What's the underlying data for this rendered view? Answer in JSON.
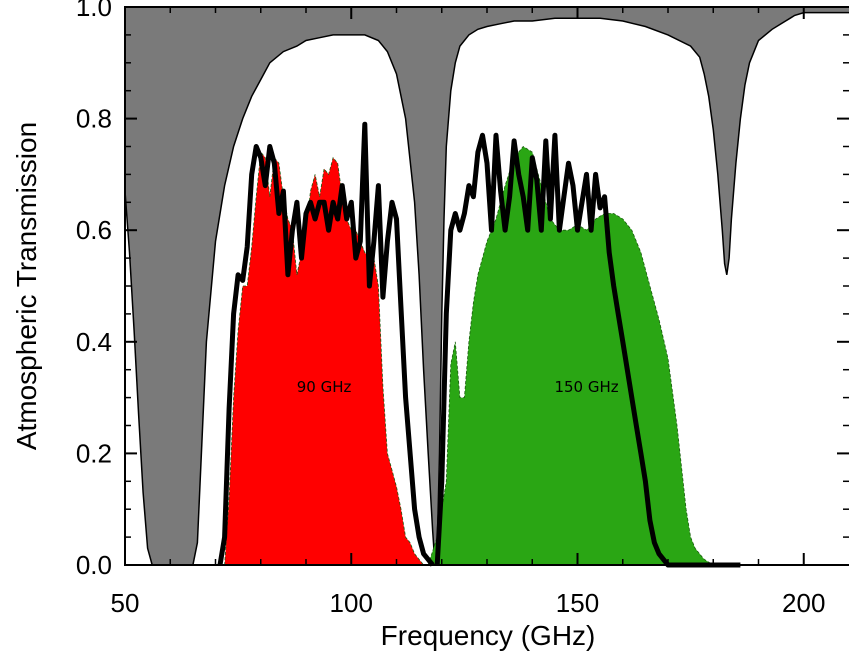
{
  "chart_data": {
    "type": "area",
    "xlabel": "Frequency (GHz)",
    "ylabel": "Atmospheric Transmission",
    "xlim": [
      50,
      210
    ],
    "ylim": [
      0,
      1.0
    ],
    "x_ticks": [
      50,
      100,
      150,
      200
    ],
    "x_tick_labels": [
      "50",
      "100",
      "150",
      "200"
    ],
    "y_ticks": [
      0,
      0.2,
      0.4,
      0.6,
      0.8,
      1.0
    ],
    "y_tick_labels": [
      "0.0",
      "0.2",
      "0.4",
      "0.6",
      "0.8",
      "1.0"
    ],
    "grid": false,
    "legend": "none",
    "annotations": [
      {
        "text": "90 GHz",
        "x": 94,
        "y": 0.31
      },
      {
        "text": "150 GHz",
        "x": 152,
        "y": 0.31
      }
    ],
    "colors": {
      "atmosphere_fill": "#7a7a7a",
      "band_90_fill": "#ff0000",
      "band_150_fill": "#2aa614",
      "outline": "#000000"
    },
    "series": [
      {
        "role": "atmospheric-transmission",
        "x": [
          50,
          51,
          52,
          53,
          54,
          55,
          56,
          57,
          58,
          60,
          62,
          64,
          65,
          66,
          67,
          68,
          70,
          72,
          74,
          76,
          78,
          80,
          82,
          85,
          88,
          90,
          93,
          96,
          100,
          103,
          106,
          108,
          110,
          112,
          114,
          115,
          116,
          117,
          118,
          118.5,
          119,
          119.5,
          120,
          120.5,
          121,
          122,
          123,
          124,
          126,
          128,
          130,
          133,
          136,
          140,
          145,
          150,
          155,
          160,
          165,
          170,
          175,
          177,
          178,
          179,
          180,
          181,
          182,
          182.5,
          183,
          183.5,
          184,
          185,
          186,
          187,
          188,
          190,
          193,
          195,
          196,
          197,
          198,
          200,
          203,
          206,
          210
        ],
        "values": [
          0.67,
          0.56,
          0.42,
          0.27,
          0.13,
          0.03,
          0.0,
          0.0,
          0.0,
          0.0,
          0.0,
          0.0,
          0.0,
          0.04,
          0.22,
          0.4,
          0.58,
          0.68,
          0.75,
          0.8,
          0.84,
          0.87,
          0.9,
          0.92,
          0.93,
          0.94,
          0.945,
          0.95,
          0.95,
          0.95,
          0.94,
          0.92,
          0.88,
          0.8,
          0.65,
          0.52,
          0.35,
          0.2,
          0.06,
          0.0,
          0.03,
          0.2,
          0.45,
          0.62,
          0.75,
          0.85,
          0.9,
          0.93,
          0.95,
          0.96,
          0.965,
          0.97,
          0.975,
          0.975,
          0.98,
          0.98,
          0.98,
          0.975,
          0.965,
          0.95,
          0.93,
          0.91,
          0.88,
          0.84,
          0.78,
          0.7,
          0.6,
          0.54,
          0.52,
          0.55,
          0.62,
          0.72,
          0.8,
          0.86,
          0.9,
          0.94,
          0.96,
          0.97,
          0.975,
          0.98,
          0.985,
          0.99,
          0.99,
          0.99,
          0.99
        ]
      },
      {
        "role": "90-ghz-band-fill",
        "x": [
          72,
          73,
          74,
          75,
          76,
          77,
          78,
          79,
          80,
          81,
          82,
          83,
          84,
          85,
          86,
          87,
          88,
          89,
          90,
          91,
          92,
          93,
          94,
          95,
          96,
          97,
          98,
          99,
          100,
          101,
          102,
          103,
          104,
          105,
          106,
          107,
          108,
          109,
          110,
          111,
          112,
          113,
          114,
          115,
          116
        ],
        "values": [
          0.0,
          0.12,
          0.3,
          0.42,
          0.5,
          0.5,
          0.57,
          0.66,
          0.74,
          0.73,
          0.66,
          0.73,
          0.72,
          0.66,
          0.62,
          0.6,
          0.52,
          0.56,
          0.6,
          0.67,
          0.7,
          0.66,
          0.71,
          0.7,
          0.73,
          0.72,
          0.66,
          0.62,
          0.6,
          0.6,
          0.58,
          0.56,
          0.55,
          0.55,
          0.5,
          0.32,
          0.2,
          0.17,
          0.14,
          0.1,
          0.05,
          0.04,
          0.02,
          0.01,
          0.0
        ]
      },
      {
        "role": "150-ghz-band-fill",
        "x": [
          117,
          119,
          121,
          122,
          123,
          124,
          125,
          126,
          127,
          128,
          130,
          132,
          134,
          136,
          138,
          140,
          142,
          144,
          146,
          148,
          150,
          152,
          154,
          156,
          158,
          160,
          162,
          164,
          166,
          168,
          170,
          172,
          174,
          175,
          176,
          178,
          180
        ],
        "values": [
          0.0,
          0.05,
          0.15,
          0.36,
          0.4,
          0.3,
          0.3,
          0.4,
          0.47,
          0.52,
          0.58,
          0.62,
          0.68,
          0.73,
          0.75,
          0.74,
          0.68,
          0.62,
          0.6,
          0.6,
          0.61,
          0.6,
          0.62,
          0.63,
          0.63,
          0.62,
          0.6,
          0.56,
          0.5,
          0.44,
          0.37,
          0.25,
          0.1,
          0.05,
          0.03,
          0.01,
          0.0
        ]
      },
      {
        "role": "90-ghz-band-outline",
        "x": [
          71,
          72,
          73,
          74,
          75,
          76,
          77,
          78,
          79,
          80,
          81,
          82,
          83,
          84,
          85,
          86,
          87,
          88,
          89,
          90,
          91,
          92,
          93,
          94,
          95,
          96,
          97,
          98,
          99,
          100,
          101,
          102,
          103,
          104,
          105,
          106,
          107,
          108,
          109,
          110,
          111,
          112,
          113,
          114,
          115,
          116,
          117,
          118
        ],
        "values": [
          0.0,
          0.05,
          0.28,
          0.45,
          0.52,
          0.51,
          0.57,
          0.7,
          0.75,
          0.73,
          0.68,
          0.75,
          0.72,
          0.63,
          0.67,
          0.52,
          0.6,
          0.65,
          0.55,
          0.63,
          0.65,
          0.62,
          0.65,
          0.65,
          0.6,
          0.65,
          0.62,
          0.68,
          0.62,
          0.65,
          0.55,
          0.58,
          0.79,
          0.5,
          0.58,
          0.68,
          0.48,
          0.58,
          0.65,
          0.62,
          0.46,
          0.3,
          0.2,
          0.1,
          0.05,
          0.02,
          0.01,
          0.0
        ]
      },
      {
        "role": "150-ghz-band-outline",
        "x": [
          119,
          120,
          121,
          122,
          123,
          124,
          125,
          126,
          127,
          128,
          129,
          130,
          131,
          132,
          133,
          134,
          135,
          136,
          137,
          138,
          139,
          140,
          141,
          142,
          143,
          144,
          145,
          146,
          147,
          148,
          149,
          150,
          151,
          152,
          153,
          154,
          155,
          156,
          157,
          158,
          159,
          160,
          161,
          162,
          163,
          164,
          165,
          166,
          167,
          168,
          169,
          170,
          171,
          172,
          173,
          174,
          175,
          176,
          178,
          180,
          183,
          186
        ],
        "values": [
          0.0,
          0.15,
          0.45,
          0.6,
          0.63,
          0.6,
          0.63,
          0.68,
          0.66,
          0.74,
          0.77,
          0.72,
          0.6,
          0.77,
          0.67,
          0.6,
          0.66,
          0.76,
          0.7,
          0.66,
          0.6,
          0.73,
          0.69,
          0.6,
          0.76,
          0.62,
          0.77,
          0.6,
          0.66,
          0.72,
          0.68,
          0.6,
          0.65,
          0.7,
          0.6,
          0.7,
          0.64,
          0.66,
          0.56,
          0.5,
          0.45,
          0.4,
          0.35,
          0.3,
          0.25,
          0.2,
          0.15,
          0.08,
          0.04,
          0.02,
          0.01,
          0.0,
          0.0,
          0.0,
          0.0,
          0.0,
          0.0,
          0.0,
          0.0,
          0.0,
          0.0,
          0.0
        ]
      }
    ]
  }
}
